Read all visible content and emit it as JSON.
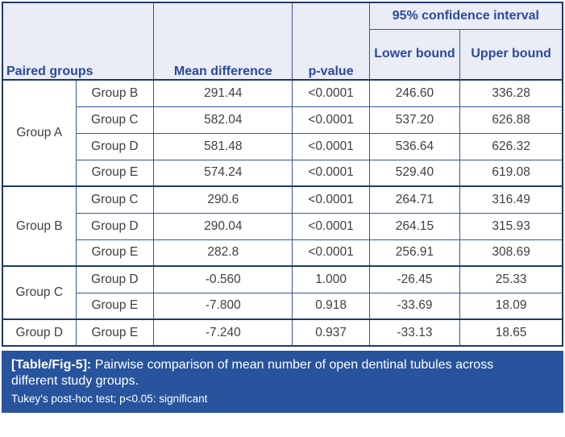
{
  "accent": {
    "header_bg": "#eaecf6",
    "header_text": "#2b4a9b",
    "body_text": "#3f3f3f",
    "grid_line": "#35598f",
    "heavy_line": "#1f3a66",
    "caption_bar_bg": "#27549d",
    "caption_text": "#ffffff"
  },
  "table": {
    "headers": {
      "paired_groups": "Paired groups",
      "mean_difference": "Mean difference",
      "p_value": "p-value",
      "confidence_interval": "95% confidence interval",
      "lower_bound": "Lower bound",
      "upper_bound": "Upper bound"
    },
    "groups": [
      {
        "group": "Group A",
        "rows": [
          {
            "vs": "Group B",
            "mean_difference": "291.44",
            "p_value": "<0.0001",
            "lower": "246.60",
            "upper": "336.28"
          },
          {
            "vs": "Group C",
            "mean_difference": "582.04",
            "p_value": "<0.0001",
            "lower": "537.20",
            "upper": "626.88"
          },
          {
            "vs": "Group D",
            "mean_difference": "581.48",
            "p_value": "<0.0001",
            "lower": "536.64",
            "upper": "626.32"
          },
          {
            "vs": "Group E",
            "mean_difference": "574.24",
            "p_value": "<0.0001",
            "lower": "529.40",
            "upper": "619.08"
          }
        ]
      },
      {
        "group": "Group B",
        "rows": [
          {
            "vs": "Group C",
            "mean_difference": "290.6",
            "p_value": "<0.0001",
            "lower": "264.71",
            "upper": "316.49"
          },
          {
            "vs": "Group D",
            "mean_difference": "290.04",
            "p_value": "<0.0001",
            "lower": "264.15",
            "upper": "315.93"
          },
          {
            "vs": "Group E",
            "mean_difference": "282.8",
            "p_value": "<0.0001",
            "lower": "256.91",
            "upper": "308.69"
          }
        ]
      },
      {
        "group": "Group C",
        "rows": [
          {
            "vs": "Group D",
            "mean_difference": "-0.560",
            "p_value": "1.000",
            "lower": "-26.45",
            "upper": "25.33"
          },
          {
            "vs": "Group E",
            "mean_difference": "-7.800",
            "p_value": "0.918",
            "lower": "-33.69",
            "upper": "18.09"
          }
        ]
      },
      {
        "group": "Group D",
        "rows": [
          {
            "vs": "Group E",
            "mean_difference": "-7.240",
            "p_value": "0.937",
            "lower": "-33.13",
            "upper": "18.65"
          }
        ]
      }
    ]
  },
  "caption": {
    "label": "[Table/Fig-5]:",
    "text": "Pairwise comparison of mean number of open dentinal tubules across different study groups.",
    "note": "Tukey's post-hoc test; p<0.05: significant"
  }
}
